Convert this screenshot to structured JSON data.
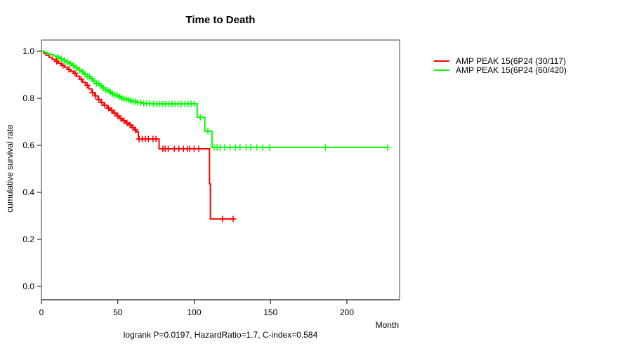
{
  "page": {
    "background": "#ffffff"
  },
  "chart_data": {
    "type": "line",
    "subtype": "kaplan-meier-step",
    "title": "Time to Death",
    "xlabel": "Month",
    "ylabel": "cumulative survival rate",
    "annotation": "logrank P=0.0197, HazardRatio=1.7, C-index=0.584",
    "xlim": [
      0,
      234
    ],
    "ylim": [
      0.0,
      1.0
    ],
    "x_ticks": [
      0,
      50,
      100,
      150,
      200
    ],
    "y_tick_labels": [
      "0.0",
      "0.2",
      "0.4",
      "0.6",
      "0.8",
      "1.0"
    ],
    "grid": false,
    "legend_position": "right-outside",
    "axis_box_color": "#808080",
    "series": [
      {
        "name": "AMP PEAK 15(6P24 (30/117)",
        "color": "#FF0000",
        "end_month": 126.5,
        "steps": [
          [
            0,
            1.0
          ],
          [
            1.5,
            0.991
          ],
          [
            3,
            0.983
          ],
          [
            5,
            0.974
          ],
          [
            7,
            0.966
          ],
          [
            9,
            0.957
          ],
          [
            11,
            0.949
          ],
          [
            13,
            0.94
          ],
          [
            15,
            0.932
          ],
          [
            17,
            0.923
          ],
          [
            19,
            0.915
          ],
          [
            21,
            0.906
          ],
          [
            23,
            0.894
          ],
          [
            25,
            0.881
          ],
          [
            27,
            0.868
          ],
          [
            29,
            0.855
          ],
          [
            31,
            0.84
          ],
          [
            33,
            0.824
          ],
          [
            35,
            0.81
          ],
          [
            37,
            0.795
          ],
          [
            39,
            0.782
          ],
          [
            41,
            0.77
          ],
          [
            43,
            0.758
          ],
          [
            45,
            0.749
          ],
          [
            47,
            0.737
          ],
          [
            49,
            0.725
          ],
          [
            51,
            0.714
          ],
          [
            53,
            0.705
          ],
          [
            55,
            0.695
          ],
          [
            57,
            0.687
          ],
          [
            59,
            0.675
          ],
          [
            61,
            0.666
          ],
          [
            62,
            0.657
          ],
          [
            63.5,
            0.627
          ],
          [
            77,
            0.585
          ],
          [
            110,
            0.436
          ],
          [
            110.6,
            0.287
          ]
        ],
        "censor_months": [
          10,
          14,
          18,
          22,
          26,
          30,
          33.5,
          35.5,
          37.5,
          39.5,
          41.5,
          44,
          46,
          48,
          50,
          52,
          54,
          56,
          58,
          60,
          61.5,
          64,
          66,
          68,
          70,
          73,
          75,
          79.5,
          81,
          83,
          87,
          90,
          93,
          95.5,
          97,
          100,
          103,
          118.5,
          125.5
        ]
      },
      {
        "name": "AMP PEAK 15(6P24 (60/420)",
        "color": "#00FF00",
        "end_month": 226.7,
        "steps": [
          [
            0,
            1.0
          ],
          [
            2,
            0.995
          ],
          [
            4,
            0.99
          ],
          [
            6,
            0.985
          ],
          [
            8,
            0.98
          ],
          [
            10,
            0.974
          ],
          [
            12,
            0.968
          ],
          [
            14,
            0.961
          ],
          [
            16,
            0.954
          ],
          [
            18,
            0.947
          ],
          [
            20,
            0.939
          ],
          [
            22,
            0.93
          ],
          [
            24,
            0.921
          ],
          [
            26,
            0.912
          ],
          [
            28,
            0.902
          ],
          [
            30,
            0.893
          ],
          [
            32,
            0.883
          ],
          [
            34,
            0.873
          ],
          [
            36,
            0.863
          ],
          [
            38,
            0.853
          ],
          [
            40,
            0.844
          ],
          [
            42,
            0.835
          ],
          [
            44,
            0.827
          ],
          [
            46,
            0.82
          ],
          [
            48,
            0.813
          ],
          [
            50,
            0.807
          ],
          [
            52,
            0.801
          ],
          [
            54,
            0.797
          ],
          [
            56,
            0.793
          ],
          [
            58,
            0.79
          ],
          [
            60,
            0.786
          ],
          [
            63,
            0.782
          ],
          [
            67,
            0.778
          ],
          [
            73,
            0.776
          ],
          [
            102,
            0.719
          ],
          [
            107,
            0.66
          ],
          [
            111.7,
            0.591
          ]
        ],
        "censor_months": [
          11,
          13,
          15,
          17,
          19,
          21,
          23,
          25,
          27,
          28.5,
          30,
          31.5,
          33,
          34.5,
          36,
          37.5,
          39,
          40.5,
          42,
          43.5,
          45,
          46.5,
          48,
          49.5,
          51,
          52.5,
          54,
          55.5,
          57,
          58.5,
          60,
          61.5,
          63,
          65,
          67,
          69,
          71,
          73.5,
          75.5,
          77.5,
          79.5,
          81.5,
          83.5,
          85.5,
          87.5,
          89.5,
          91.5,
          94,
          96,
          98,
          100,
          104,
          109,
          113,
          115,
          117,
          120,
          123.5,
          127,
          130,
          134,
          137,
          141,
          145,
          149.5,
          186,
          226.7
        ]
      }
    ]
  }
}
